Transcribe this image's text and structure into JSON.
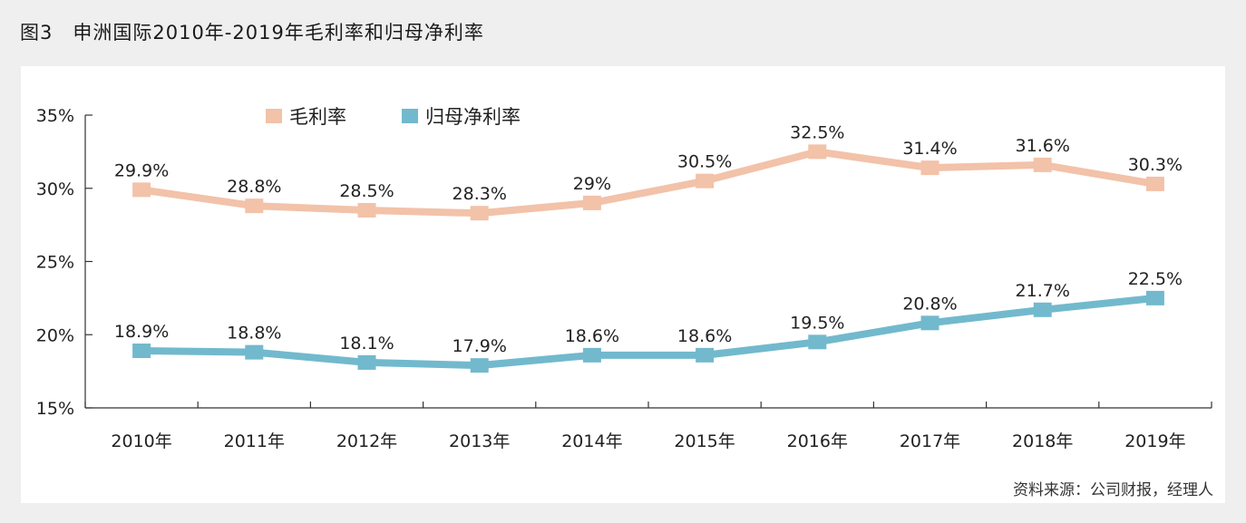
{
  "figure_title": "图3　申洲国际2010年-2019年毛利率和归母净利率",
  "source": "资料来源：公司财报，经理人",
  "colors": {
    "gross": "#f2c2a9",
    "net": "#72b9cd",
    "axis": "#333333"
  },
  "chart_data": {
    "type": "line",
    "categories": [
      "2010年",
      "2011年",
      "2012年",
      "2013年",
      "2014年",
      "2015年",
      "2016年",
      "2017年",
      "2018年",
      "2019年"
    ],
    "series": [
      {
        "name": "毛利率",
        "values": [
          29.9,
          28.8,
          28.5,
          28.3,
          29,
          30.5,
          32.5,
          31.4,
          31.6,
          30.3
        ],
        "labels": [
          "29.9%",
          "28.8%",
          "28.5%",
          "28.3%",
          "29%",
          "30.5%",
          "32.5%",
          "31.4%",
          "31.6%",
          "30.3%"
        ]
      },
      {
        "name": "归母净利率",
        "values": [
          18.9,
          18.8,
          18.1,
          17.9,
          18.6,
          18.6,
          19.5,
          20.8,
          21.7,
          22.5
        ],
        "labels": [
          "18.9%",
          "18.8%",
          "18.1%",
          "17.9%",
          "18.6%",
          "18.6%",
          "19.5%",
          "20.8%",
          "21.7%",
          "22.5%"
        ]
      }
    ],
    "yticks": [
      35,
      30,
      25,
      20,
      15
    ],
    "ytick_labels": [
      "35%",
      "30%",
      "25%",
      "20%",
      "15%"
    ],
    "ylim": [
      15,
      35
    ],
    "legend_position": "top",
    "grid": false
  }
}
